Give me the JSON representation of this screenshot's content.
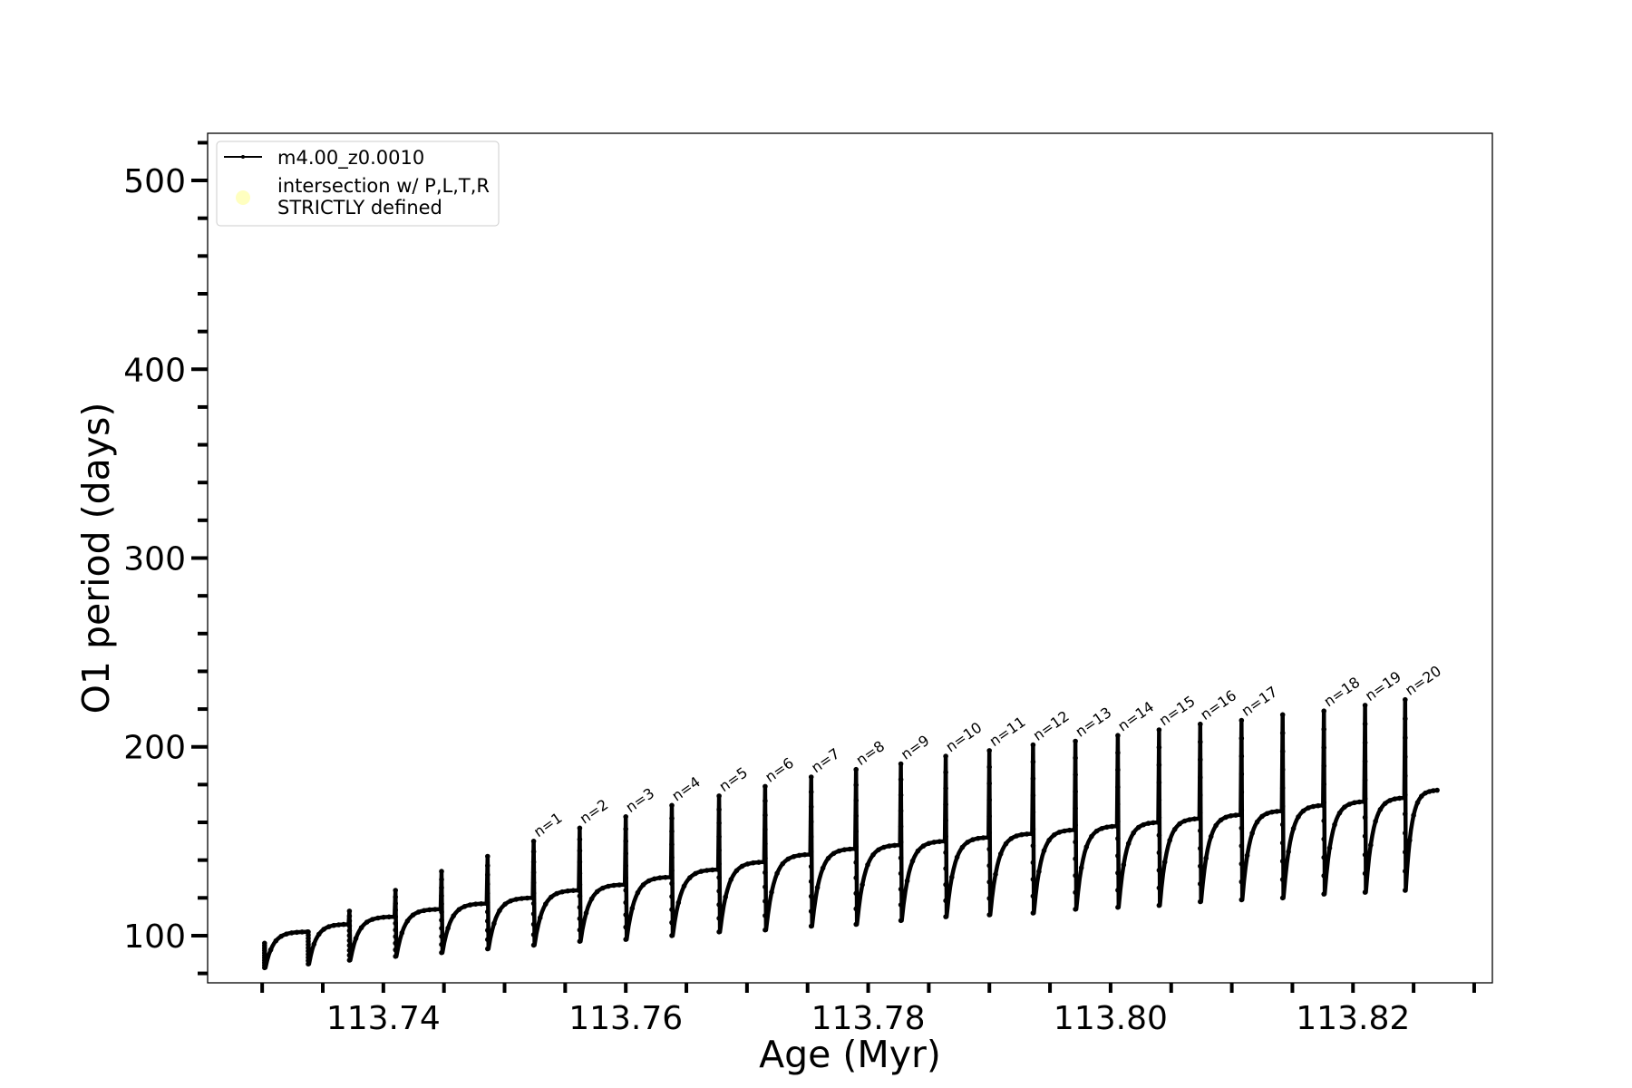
{
  "chart_data": {
    "type": "line",
    "xlabel": "Age (Myr)",
    "ylabel": "O1 period (days)",
    "xlim": [
      113.7255,
      113.8315
    ],
    "ylim": [
      75,
      525
    ],
    "x_major_ticks": [
      113.74,
      113.76,
      113.78,
      113.8,
      113.82
    ],
    "x_tick_labels": [
      "113.74",
      "113.76",
      "113.78",
      "113.80",
      "113.82"
    ],
    "x_minor_ticks": [
      113.73,
      113.735,
      113.745,
      113.75,
      113.755,
      113.765,
      113.77,
      113.775,
      113.785,
      113.79,
      113.795,
      113.805,
      113.81,
      113.815,
      113.825,
      113.83
    ],
    "y_major_ticks": [
      100,
      200,
      300,
      400,
      500
    ],
    "y_tick_labels": [
      "100",
      "200",
      "300",
      "400",
      "500"
    ],
    "y_minor_ticks": [
      80,
      120,
      140,
      160,
      180,
      220,
      240,
      260,
      280,
      320,
      340,
      360,
      380,
      420,
      440,
      460,
      480,
      520
    ],
    "grid": false,
    "legend": {
      "placement": "top-left",
      "entries": [
        {
          "label": "m4.00_z0.0010",
          "marker": "line-dot",
          "color": "#000000"
        },
        {
          "label_lines": [
            "intersection w/ P,L,T,R",
            "STRICTLY defined"
          ],
          "marker": "circle",
          "color": "#ffffc0"
        }
      ]
    },
    "series": [
      {
        "name": "m4.00_z0.0010",
        "color": "#000000",
        "end_x": 113.827,
        "end_y": 177,
        "pulses": [
          {
            "x": 113.7302,
            "peak": 96,
            "min": 83,
            "plateau": 102
          },
          {
            "x": 113.7338,
            "peak": 102,
            "min": 85,
            "plateau": 106
          },
          {
            "x": 113.7372,
            "peak": 113,
            "min": 87,
            "plateau": 110
          },
          {
            "x": 113.741,
            "peak": 124,
            "min": 89,
            "plateau": 114
          },
          {
            "x": 113.7448,
            "peak": 134,
            "min": 91,
            "plateau": 117
          },
          {
            "x": 113.7486,
            "peak": 142,
            "min": 93,
            "plateau": 120
          },
          {
            "x": 113.7524,
            "peak": 150,
            "min": 95,
            "plateau": 124,
            "label": "n=1"
          },
          {
            "x": 113.7562,
            "peak": 157,
            "min": 97,
            "plateau": 127,
            "label": "n=2"
          },
          {
            "x": 113.76,
            "peak": 163,
            "min": 98,
            "plateau": 131,
            "label": "n=3"
          },
          {
            "x": 113.7638,
            "peak": 169,
            "min": 100,
            "plateau": 135,
            "label": "n=4"
          },
          {
            "x": 113.7677,
            "peak": 174,
            "min": 102,
            "plateau": 139,
            "label": "n=5"
          },
          {
            "x": 113.7715,
            "peak": 179,
            "min": 103,
            "plateau": 143,
            "label": "n=6"
          },
          {
            "x": 113.7753,
            "peak": 184,
            "min": 105,
            "plateau": 146,
            "label": "n=7"
          },
          {
            "x": 113.779,
            "peak": 188,
            "min": 106,
            "plateau": 148,
            "label": "n=8"
          },
          {
            "x": 113.7827,
            "peak": 191,
            "min": 108,
            "plateau": 150,
            "label": "n=9"
          },
          {
            "x": 113.7864,
            "peak": 195,
            "min": 110,
            "plateau": 152,
            "label": "n=10"
          },
          {
            "x": 113.79,
            "peak": 198,
            "min": 111,
            "plateau": 154,
            "label": "n=11"
          },
          {
            "x": 113.7936,
            "peak": 201,
            "min": 112,
            "plateau": 156,
            "label": "n=12"
          },
          {
            "x": 113.7971,
            "peak": 203,
            "min": 114,
            "plateau": 158,
            "label": "n=13"
          },
          {
            "x": 113.8006,
            "peak": 206,
            "min": 115,
            "plateau": 160,
            "label": "n=14"
          },
          {
            "x": 113.804,
            "peak": 209,
            "min": 116,
            "plateau": 162,
            "label": "n=15"
          },
          {
            "x": 113.8074,
            "peak": 212,
            "min": 118,
            "plateau": 164,
            "label": "n=16"
          },
          {
            "x": 113.8108,
            "peak": 214,
            "min": 119,
            "plateau": 166,
            "label": "n=17"
          },
          {
            "x": 113.8142,
            "peak": 217,
            "min": 120,
            "plateau": 169
          },
          {
            "x": 113.8176,
            "peak": 219,
            "min": 122,
            "plateau": 171,
            "label": "n=18"
          },
          {
            "x": 113.821,
            "peak": 222,
            "min": 123,
            "plateau": 173,
            "label": "n=19"
          },
          {
            "x": 113.8243,
            "peak": 225,
            "min": 124,
            "plateau": 176,
            "label": "n=20"
          }
        ]
      }
    ]
  }
}
